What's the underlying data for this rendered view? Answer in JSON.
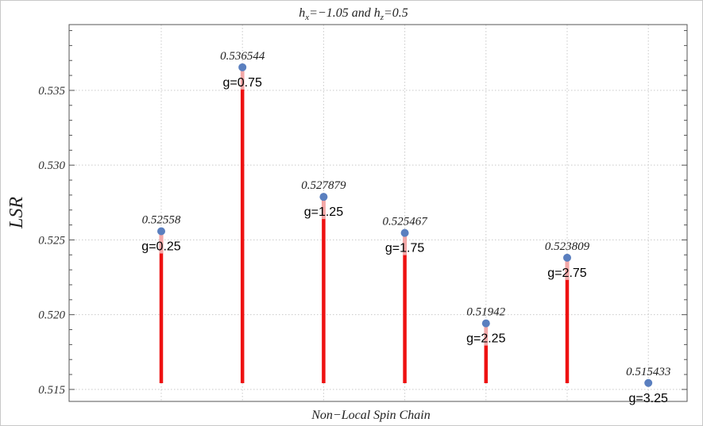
{
  "chart_data": {
    "type": "stem",
    "title_parts": [
      "h",
      "x",
      "=−1.05 and h",
      "z",
      "=0.5"
    ],
    "ylabel": "LSR",
    "xlabel": "Non−Local Spin Chain",
    "ylim": [
      0.5142,
      0.5394
    ],
    "yticks": [
      "0.515",
      "0.520",
      "0.525",
      "0.530",
      "0.535"
    ],
    "ytick_values": [
      0.515,
      0.52,
      0.525,
      0.53,
      0.535
    ],
    "grid": true,
    "categories": [
      "g=0.25",
      "g=0.75",
      "g=1.25",
      "g=1.75",
      "g=2.25",
      "g=2.75",
      "g=3.25"
    ],
    "values": [
      0.52558,
      0.536544,
      0.527879,
      0.525467,
      0.51942,
      0.523809,
      0.515433
    ],
    "value_labels": [
      "0.52558",
      "0.536544",
      "0.527879",
      "0.525467",
      "0.51942",
      "0.523809",
      "0.515433"
    ],
    "colors": {
      "stem": "#ee1111",
      "point": "#5a7fbf"
    }
  }
}
